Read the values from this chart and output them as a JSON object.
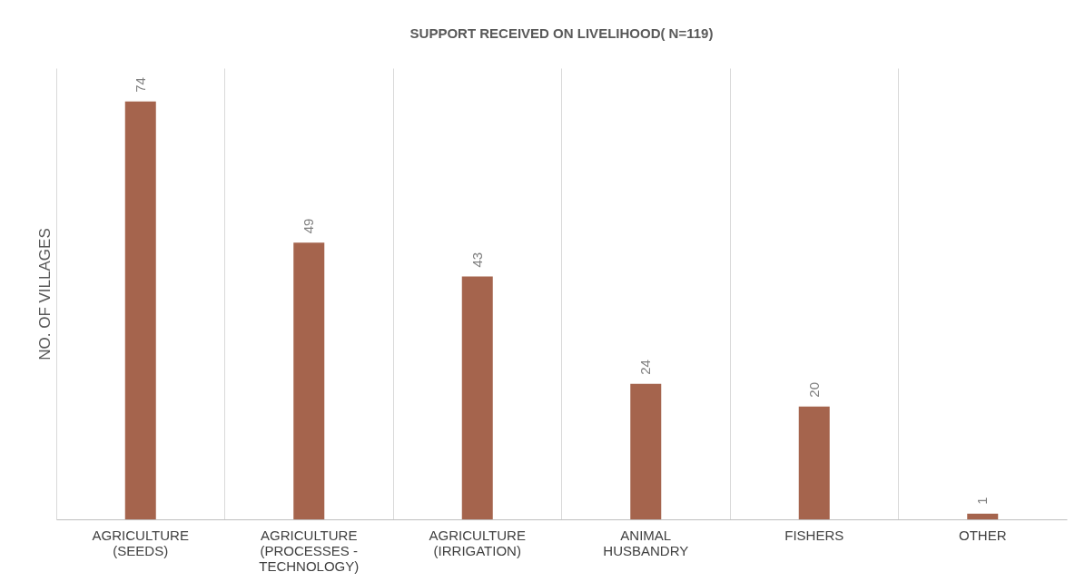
{
  "chart_data": {
    "type": "bar",
    "title": "SUPPORT RECEIVED ON LIVELIHOOD( N=119)",
    "ylabel": "NO. OF VILLAGES",
    "categories": [
      "AGRICULTURE (SEEDS)",
      "AGRICULTURE (PROCESSES - TECHNOLOGY)",
      "AGRICULTURE (IRRIGATION)",
      "ANIMAL HUSBANDRY",
      "FISHERS",
      "OTHER"
    ],
    "values": [
      74,
      49,
      43,
      24,
      20,
      1
    ],
    "color": "#a5644d",
    "data_labels": true,
    "grid": "x",
    "tick_labels": "x"
  }
}
